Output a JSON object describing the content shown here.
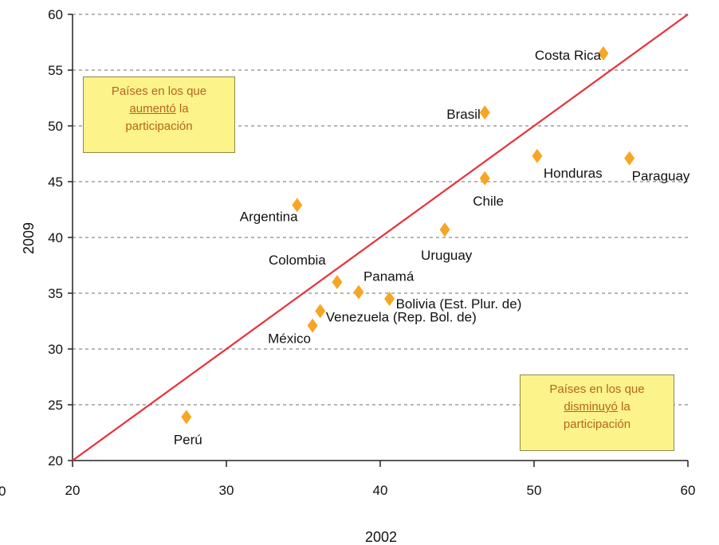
{
  "chart_data": {
    "type": "scatter",
    "xlabel": "2002",
    "ylabel": "2009",
    "xlim": [
      20,
      60
    ],
    "ylim": [
      20,
      60
    ],
    "x_ticks": [
      20,
      30,
      40,
      50,
      60
    ],
    "y_ticks": [
      20,
      25,
      30,
      35,
      40,
      45,
      50,
      55,
      60
    ],
    "corner_label": "0",
    "grid": "horizontal-dashed",
    "reference_line": {
      "from": [
        20,
        20
      ],
      "to": [
        60,
        60
      ],
      "color": "#e8323c"
    },
    "marker_color": "#f6a623",
    "points": [
      {
        "label": "Costa Rica",
        "x": 54.5,
        "y": 56.5
      },
      {
        "label": "Brasil",
        "x": 46.8,
        "y": 51.2
      },
      {
        "label": "Honduras",
        "x": 50.2,
        "y": 47.3
      },
      {
        "label": "Paraguay",
        "x": 56.2,
        "y": 47.1
      },
      {
        "label": "Chile",
        "x": 46.8,
        "y": 45.3
      },
      {
        "label": "Argentina",
        "x": 34.6,
        "y": 42.9
      },
      {
        "label": "Uruguay",
        "x": 44.2,
        "y": 40.7
      },
      {
        "label": "Colombia",
        "x": 37.2,
        "y": 36.0
      },
      {
        "label": "Panamá",
        "x": 38.6,
        "y": 35.1
      },
      {
        "label": "Bolivia (Est. Plur. de)",
        "x": 40.6,
        "y": 34.5
      },
      {
        "label": "Venezuela (Rep. Bol. de)",
        "x": 36.1,
        "y": 33.4
      },
      {
        "label": "México",
        "x": 35.6,
        "y": 32.1
      },
      {
        "label": "Perú",
        "x": 27.4,
        "y": 23.9
      }
    ]
  },
  "annotations": {
    "increased": {
      "line1": "Países en los que",
      "word": "aumentó",
      "rest": " la",
      "line3": "participación"
    },
    "decreased": {
      "line1": "Países en los que",
      "word": "disminuyó",
      "rest": " la",
      "line3": "participación"
    }
  }
}
